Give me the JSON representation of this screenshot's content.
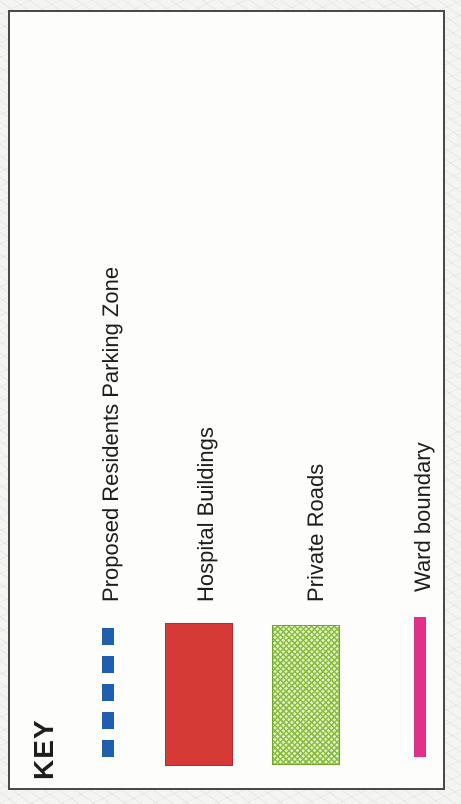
{
  "key": {
    "title": "KEY",
    "items": [
      {
        "label": "Proposed Residents Parking Zone",
        "symbol": "dashed-line",
        "color": "#1f5fb0"
      },
      {
        "label": "Hospital Buildings",
        "symbol": "filled-box",
        "color": "#d63a36"
      },
      {
        "label": "Private Roads",
        "symbol": "hatched-box",
        "color": "#86bd3c"
      },
      {
        "label": "Ward boundary",
        "symbol": "solid-line",
        "color": "#e0318a"
      }
    ]
  }
}
